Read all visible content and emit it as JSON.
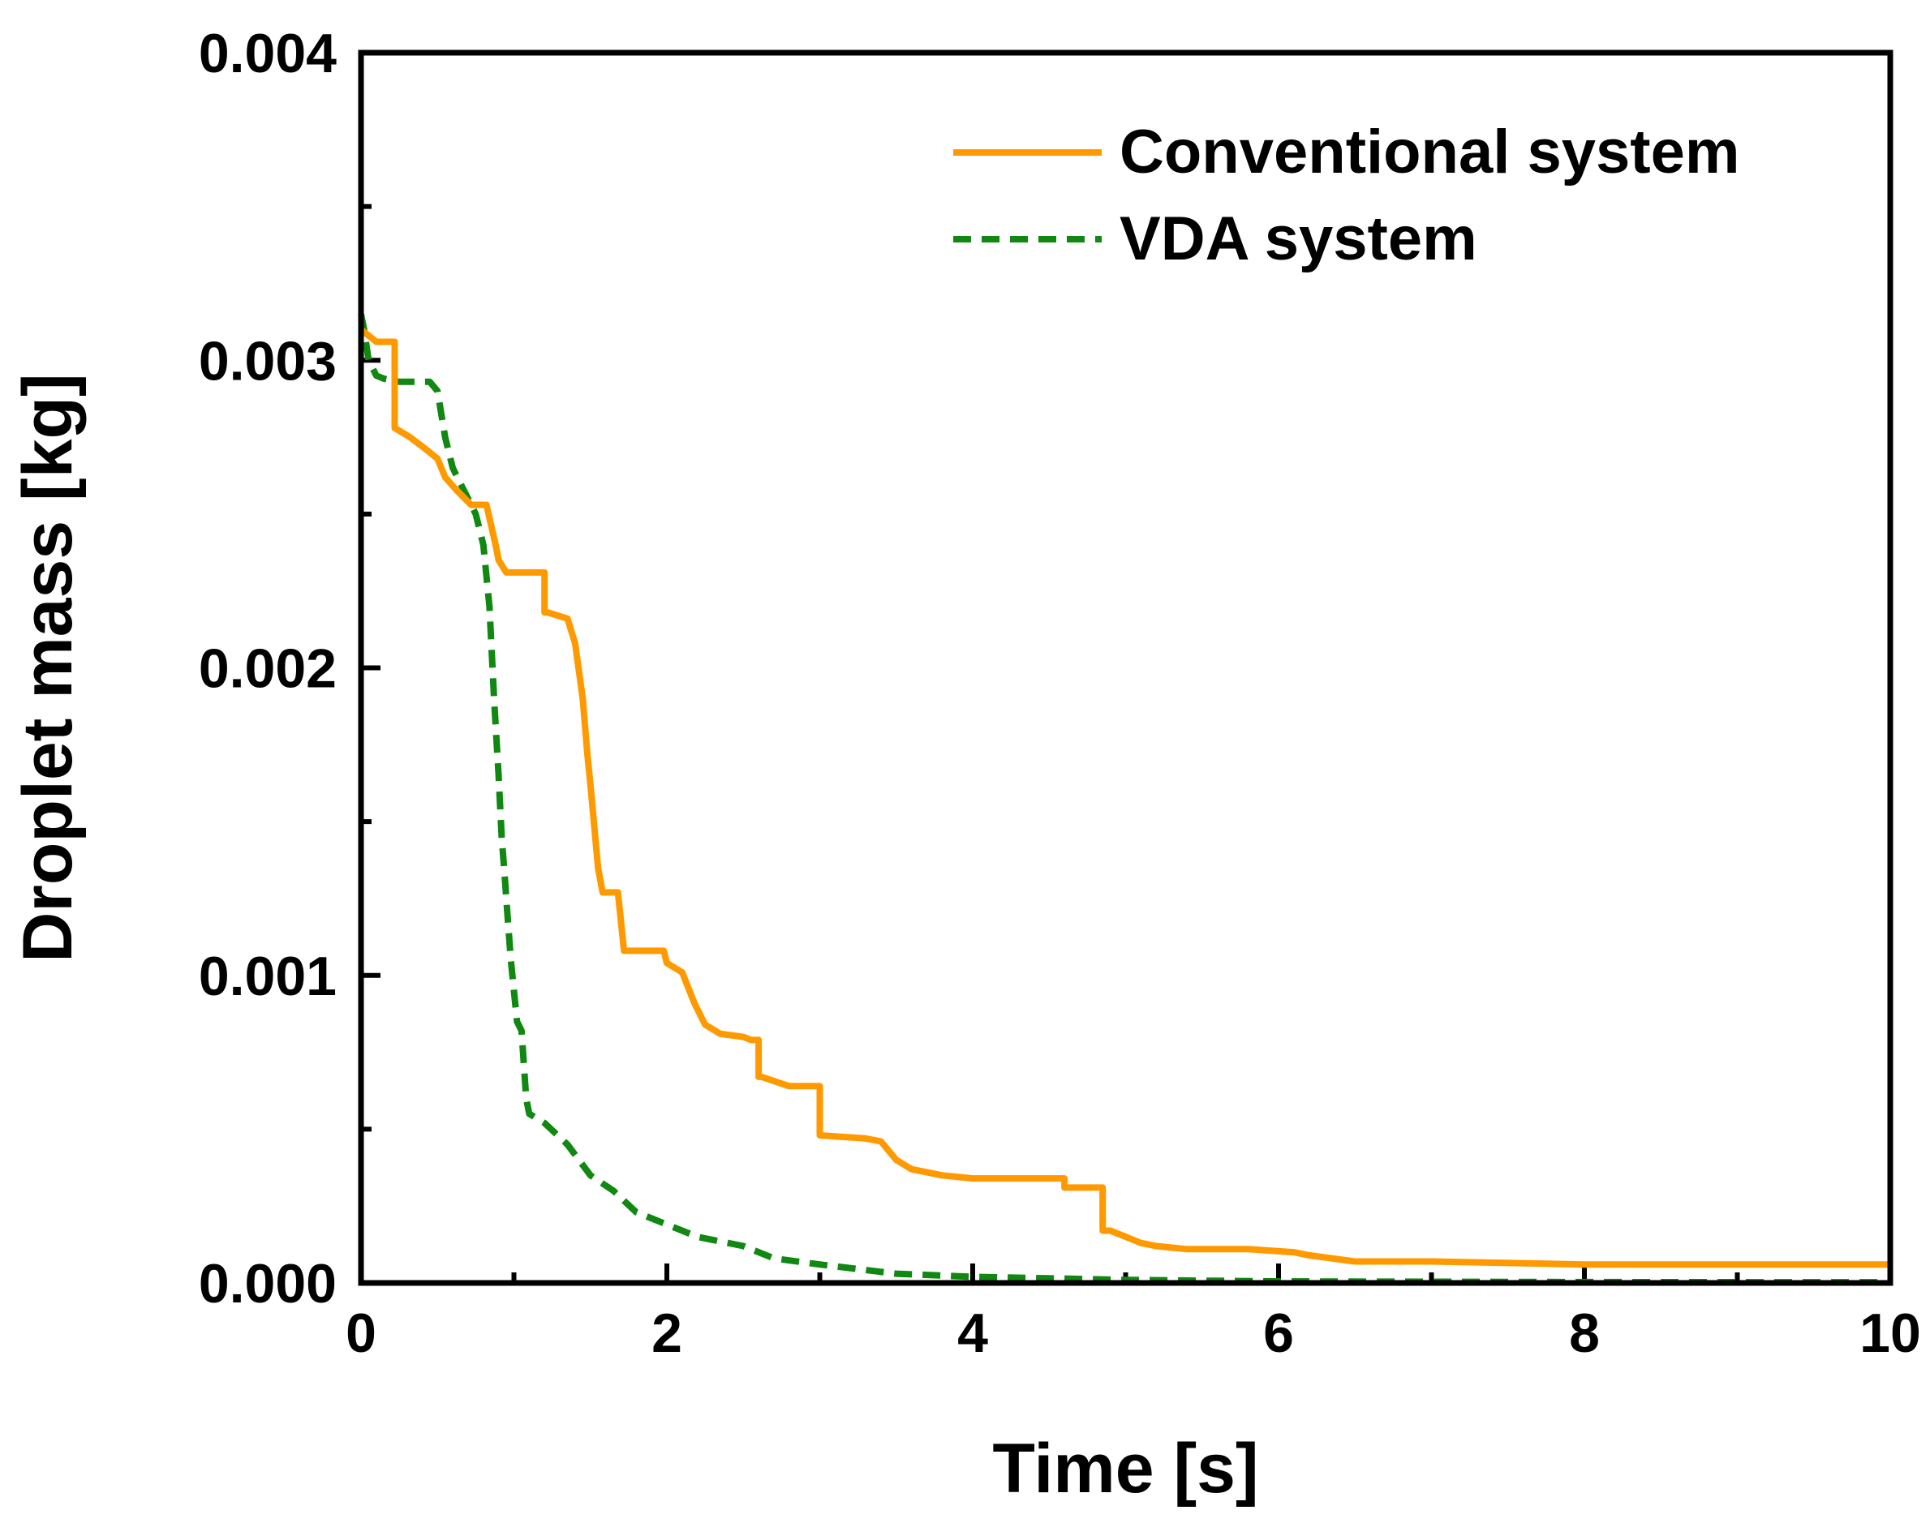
{
  "chart_data": {
    "type": "line",
    "title": "",
    "xlabel": "Time [s]",
    "ylabel": "Droplet mass [kg]",
    "xlim": [
      0,
      10
    ],
    "ylim": [
      0,
      0.004
    ],
    "xticks": [
      0,
      2,
      4,
      6,
      8,
      10
    ],
    "xtick_labels": [
      "0",
      "2",
      "4",
      "6",
      "8",
      "10"
    ],
    "yticks": [
      0,
      0.001,
      0.002,
      0.003,
      0.004
    ],
    "ytick_labels": [
      "0.000",
      "0.001",
      "0.002",
      "0.003",
      "0.004"
    ],
    "grid": false,
    "legend": {
      "position": "top-right"
    },
    "series": [
      {
        "name": "Conventional system",
        "color": "#FF9900",
        "style": "solid",
        "x": [
          0,
          0.1,
          0.1,
          0.22,
          0.22,
          0.32,
          0.4,
          0.5,
          0.55,
          0.62,
          0.72,
          0.82,
          0.88,
          0.9,
          0.95,
          1.0,
          1.2,
          1.2,
          1.22,
          1.35,
          1.4,
          1.45,
          1.48,
          1.5,
          1.55,
          1.58,
          1.62,
          1.68,
          1.72,
          1.72,
          1.8,
          1.98,
          2.0,
          2.1,
          2.18,
          2.25,
          2.35,
          2.5,
          2.55,
          2.6,
          2.6,
          2.62,
          2.8,
          2.8,
          3.0,
          3.0,
          3.3,
          3.4,
          3.5,
          3.6,
          3.8,
          4.0,
          4.6,
          4.6,
          4.85,
          4.85,
          4.9,
          5.1,
          5.2,
          5.4,
          5.8,
          6.1,
          6.2,
          6.5,
          7.0,
          8.0,
          10.0
        ],
        "values": [
          0.0031,
          0.00306,
          0.00306,
          0.00306,
          0.00278,
          0.00275,
          0.00272,
          0.00268,
          0.00262,
          0.00258,
          0.00253,
          0.00253,
          0.0024,
          0.00235,
          0.00231,
          0.00231,
          0.00231,
          0.00218,
          0.00218,
          0.00216,
          0.00208,
          0.0019,
          0.00172,
          0.00162,
          0.00135,
          0.00127,
          0.00127,
          0.00127,
          0.00108,
          0.00108,
          0.00108,
          0.00108,
          0.00104,
          0.00101,
          0.00091,
          0.00084,
          0.00081,
          0.0008,
          0.00079,
          0.00079,
          0.00067,
          0.00067,
          0.00064,
          0.00064,
          0.00064,
          0.00048,
          0.00047,
          0.00046,
          0.0004,
          0.00037,
          0.00035,
          0.00034,
          0.00034,
          0.00031,
          0.00031,
          0.00017,
          0.00017,
          0.00013,
          0.00012,
          0.00011,
          0.00011,
          0.0001,
          9e-05,
          7e-05,
          7e-05,
          6e-05,
          6e-05
        ]
      },
      {
        "name": "VDA system",
        "color": "#118811",
        "style": "dashed",
        "x": [
          0,
          0.02,
          0.05,
          0.1,
          0.15,
          0.25,
          0.45,
          0.5,
          0.55,
          0.6,
          0.65,
          0.7,
          0.75,
          0.8,
          0.84,
          0.87,
          0.9,
          0.92,
          0.94,
          0.96,
          0.98,
          1.0,
          1.02,
          1.05,
          1.08,
          1.1,
          1.2,
          1.35,
          1.5,
          1.65,
          1.8,
          2.0,
          2.2,
          2.5,
          2.7,
          3.0,
          3.5,
          4.0,
          5.0,
          6.0,
          8.0,
          10.0
        ],
        "values": [
          0.00315,
          0.0031,
          0.003,
          0.00295,
          0.00294,
          0.00293,
          0.00293,
          0.0029,
          0.00275,
          0.00265,
          0.0026,
          0.00255,
          0.0025,
          0.0024,
          0.0022,
          0.0019,
          0.00165,
          0.00145,
          0.00132,
          0.00118,
          0.00105,
          0.00095,
          0.00085,
          0.00082,
          0.0006,
          0.00055,
          0.00052,
          0.00045,
          0.00035,
          0.0003,
          0.00023,
          0.00019,
          0.00015,
          0.00012,
          8e-05,
          6e-05,
          3e-05,
          2e-05,
          1e-05,
          5e-06,
          3e-06,
          2e-06
        ]
      }
    ]
  }
}
